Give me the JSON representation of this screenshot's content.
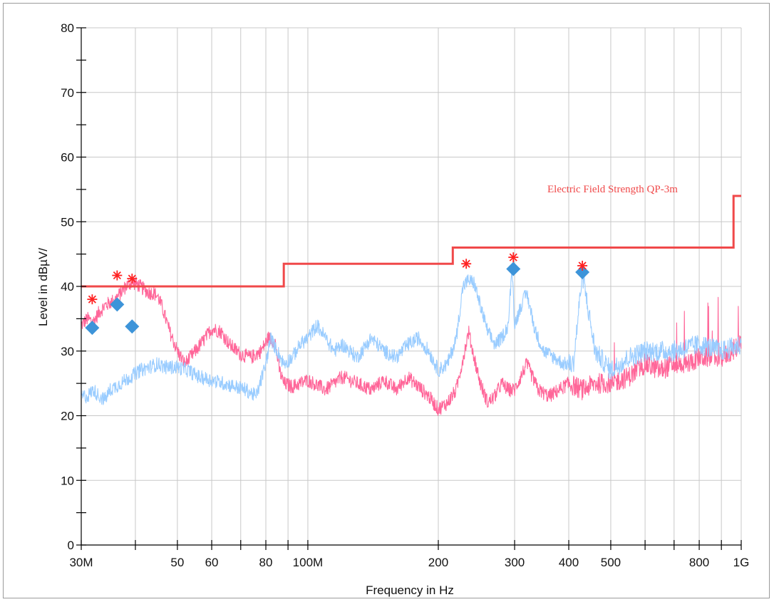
{
  "chart_data": {
    "type": "line",
    "xscale": "log",
    "xlabel": "Frequency in Hz",
    "ylabel": "Level in dBµV/",
    "xlim": [
      30000000,
      1000000000
    ],
    "ylim": [
      0,
      80
    ],
    "grid": true,
    "y_ticks": [
      0,
      10,
      20,
      30,
      40,
      50,
      60,
      70,
      80
    ],
    "y_tick_labels": [
      "0",
      "10",
      "20",
      "30",
      "40",
      "50",
      "60",
      "70",
      "80"
    ],
    "x_ticks": [
      30000000,
      50000000,
      60000000,
      80000000,
      100000000,
      200000000,
      300000000,
      400000000,
      500000000,
      800000000,
      1000000000
    ],
    "x_tick_labels": [
      "30M",
      "50",
      "60",
      "80",
      "100M",
      "200",
      "300",
      "400",
      "500",
      "800",
      "1G"
    ],
    "x_minor_gridlines": [
      40000000,
      70000000,
      90000000,
      600000000,
      700000000,
      900000000
    ],
    "limit": {
      "name": "Electric Field Strength QP-3m",
      "color": "#f0494a",
      "x": [
        30000000,
        88000000,
        88000000,
        216000000,
        216000000,
        960000000,
        960000000,
        1000000000
      ],
      "y": [
        40,
        40,
        43.5,
        43.5,
        46,
        46,
        54,
        54
      ]
    },
    "series": [
      {
        "color": "#ff6699",
        "x": [
          30000000,
          31000000,
          32000000,
          33000000,
          34000000,
          35000000,
          36000000,
          37000000,
          38000000,
          39000000,
          40000000,
          41000000,
          42000000,
          43000000,
          44000000,
          45000000,
          46000000,
          47000000,
          48000000,
          50000000,
          52000000,
          55000000,
          58000000,
          60000000,
          63000000,
          66000000,
          70000000,
          74000000,
          78000000,
          81000000,
          84000000,
          86000000,
          88000000,
          92000000,
          100000000,
          110000000,
          120000000,
          130000000,
          140000000,
          150000000,
          160000000,
          170000000,
          180000000,
          190000000,
          200000000,
          210000000,
          220000000,
          230000000,
          235000000,
          240000000,
          250000000,
          260000000,
          270000000,
          280000000,
          290000000,
          300000000,
          320000000,
          340000000,
          360000000,
          380000000,
          400000000,
          430000000,
          460000000,
          500000000,
          550000000,
          600000000,
          650000000,
          700000000,
          750000000,
          800000000,
          850000000,
          900000000,
          950000000,
          1000000000
        ],
        "values": [
          34,
          35,
          34.5,
          36,
          37,
          37.5,
          38,
          39,
          40,
          40.5,
          40.5,
          40,
          39.5,
          39,
          39,
          38.5,
          37,
          35,
          33,
          30,
          28,
          30,
          32,
          33.5,
          33,
          31,
          29.5,
          29,
          30,
          32,
          31.5,
          27,
          25,
          24.5,
          25.5,
          24,
          26,
          25,
          24,
          25.5,
          24,
          26,
          24.5,
          23,
          21,
          22,
          24,
          30,
          33,
          30,
          25,
          22,
          23,
          25,
          24,
          24,
          28,
          24,
          23,
          24,
          25,
          24,
          25,
          25,
          26,
          28,
          27,
          28,
          28,
          29,
          29,
          29,
          30,
          31
        ]
      },
      {
        "color": "#99ccff",
        "x": [
          30000000,
          31000000,
          32000000,
          33000000,
          34000000,
          35000000,
          37000000,
          39000000,
          41000000,
          43000000,
          45000000,
          47000000,
          50000000,
          53000000,
          56000000,
          60000000,
          64000000,
          68000000,
          72000000,
          76000000,
          80000000,
          82000000,
          85000000,
          88000000,
          92000000,
          96000000,
          100000000,
          105000000,
          110000000,
          115000000,
          120000000,
          130000000,
          140000000,
          150000000,
          160000000,
          170000000,
          180000000,
          190000000,
          200000000,
          210000000,
          220000000,
          228000000,
          235000000,
          242000000,
          250000000,
          260000000,
          270000000,
          280000000,
          290000000,
          296000000,
          300000000,
          310000000,
          320000000,
          335000000,
          350000000,
          370000000,
          390000000,
          410000000,
          430000000,
          460000000,
          500000000,
          550000000,
          600000000,
          700000000,
          800000000,
          900000000,
          1000000000
        ],
        "values": [
          23,
          23,
          24,
          23,
          22.5,
          24,
          25,
          26,
          27,
          27.5,
          28,
          27.5,
          27.5,
          27,
          26,
          25.5,
          25,
          24.5,
          24,
          23,
          28,
          32,
          30,
          28,
          29,
          31,
          32,
          34,
          32,
          30,
          31,
          29,
          32,
          30,
          29,
          31,
          32,
          30,
          27,
          28,
          32,
          40,
          41,
          40.5,
          37,
          33,
          31,
          32,
          34,
          43,
          34,
          37,
          39,
          33,
          30,
          29,
          28,
          28,
          42,
          30,
          27,
          29,
          30,
          30,
          31,
          30,
          31
        ]
      }
    ],
    "peak_markers": {
      "color": "#ff2222",
      "points": [
        {
          "x": 31800000,
          "y": 38
        },
        {
          "x": 36300000,
          "y": 41.7
        },
        {
          "x": 39300000,
          "y": 41.2
        },
        {
          "x": 232000000,
          "y": 43.5
        },
        {
          "x": 298000000,
          "y": 44.5
        },
        {
          "x": 430000000,
          "y": 43.2
        }
      ]
    },
    "qp_markers": {
      "color": "#3d94d9",
      "points": [
        {
          "x": 31800000,
          "y": 33.6
        },
        {
          "x": 36300000,
          "y": 37.2
        },
        {
          "x": 39300000,
          "y": 33.8
        },
        {
          "x": 298000000,
          "y": 42.7
        },
        {
          "x": 430000000,
          "y": 42.2
        }
      ]
    }
  }
}
